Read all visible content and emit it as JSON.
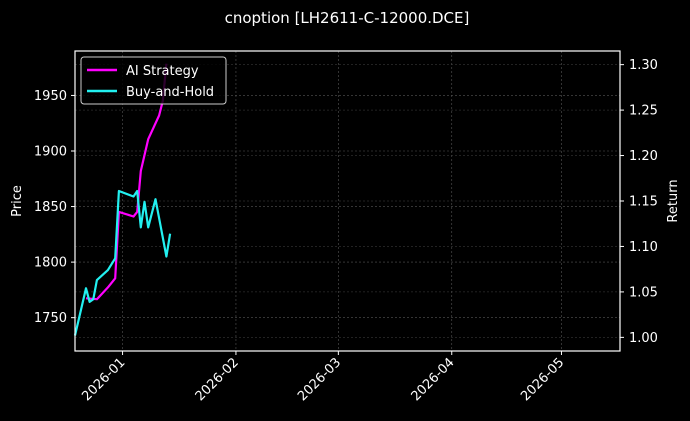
{
  "chart_data": {
    "type": "line",
    "title": "cnoption [LH2611-C-12000.DCE]",
    "xlabel": "",
    "ylabel": "Price",
    "ylabel_right": "Return",
    "grid": true,
    "legend_position": "upper left",
    "x_ticks": [
      "2026-01",
      "2026-02",
      "2026-03",
      "2026-04",
      "2026-05"
    ],
    "y_ticks_left": [
      1750,
      1800,
      1850,
      1900,
      1950
    ],
    "y_ticks_right": [
      "1.00",
      "1.05",
      "1.10",
      "1.15",
      "1.20",
      "1.25",
      "1.30"
    ],
    "ylim_left": [
      1720,
      1990
    ],
    "ylim_right": [
      0.985,
      1.315
    ],
    "xlim": [
      "2025-12-19",
      "2026-05-17"
    ],
    "series": [
      {
        "name": "AI Strategy",
        "color": "#ff00ff",
        "axis": "right",
        "x": [
          "2025-12-22",
          "2025-12-25",
          "2025-12-28",
          "2025-12-30",
          "2025-12-31",
          "2026-01-04",
          "2026-01-05",
          "2026-01-06",
          "2026-01-08",
          "2026-01-11",
          "2026-01-12",
          "2026-01-13"
        ],
        "values": [
          1.043,
          1.042,
          1.055,
          1.065,
          1.138,
          1.133,
          1.138,
          1.183,
          1.218,
          1.244,
          1.26,
          1.301
        ]
      },
      {
        "name": "Buy-and-Hold",
        "color": "#22f0f0",
        "axis": "right",
        "x": [
          "2025-12-19",
          "2025-12-22",
          "2025-12-23",
          "2025-12-24",
          "2025-12-25",
          "2025-12-28",
          "2025-12-30",
          "2025-12-31",
          "2026-01-04",
          "2026-01-05",
          "2026-01-06",
          "2026-01-07",
          "2026-01-08",
          "2026-01-10",
          "2026-01-13",
          "2026-01-14"
        ],
        "values": [
          1.002,
          1.054,
          1.039,
          1.042,
          1.063,
          1.074,
          1.087,
          1.161,
          1.155,
          1.161,
          1.121,
          1.149,
          1.121,
          1.152,
          1.089,
          1.114
        ]
      }
    ]
  },
  "legend": {
    "items": [
      {
        "label": "AI Strategy",
        "color": "#ff00ff"
      },
      {
        "label": "Buy-and-Hold",
        "color": "#22f0f0"
      }
    ]
  }
}
